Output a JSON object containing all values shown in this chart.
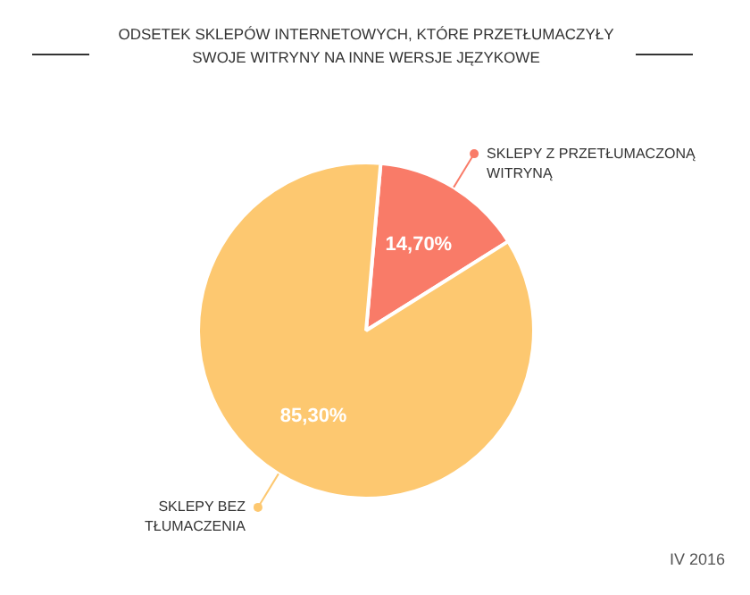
{
  "chart_data": {
    "type": "pie",
    "title": "ODSETEK SKLEPÓW INTERNETOWYCH, KTÓRE PRZETŁUMACZYŁY SWOJE WITRYNY NA INNE WERSJE JĘZYKOWE",
    "categories": [
      "SKLEPY Z PRZETŁUMACZONĄ WITRYNĄ",
      "SKLEPY BEZ TŁUMACZENIA"
    ],
    "values": [
      14.7,
      85.3
    ],
    "colors": [
      "#f97b68",
      "#fdc870"
    ],
    "value_labels": [
      "14,70%",
      "85,30%"
    ],
    "legend": "top right",
    "annotations": [
      "IV 2016"
    ]
  }
}
